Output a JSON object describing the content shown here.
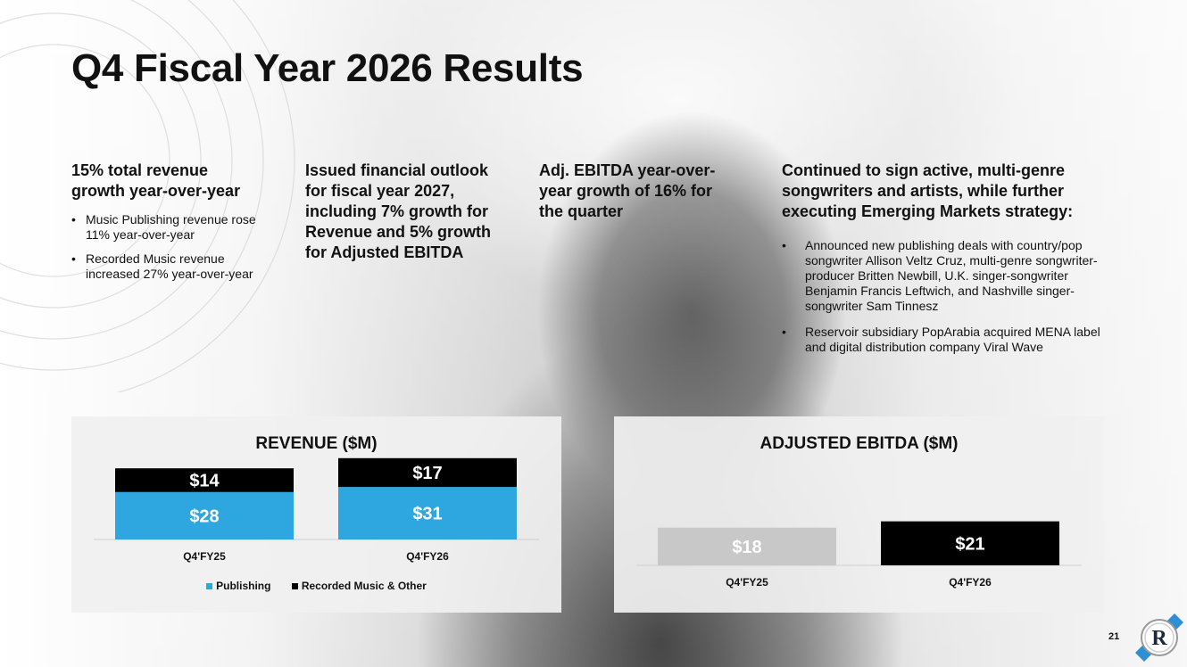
{
  "title": "Q4 Fiscal Year 2026 Results",
  "columns": [
    {
      "heading": "15% total revenue growth year-over-year",
      "bullets": [
        "Music Publishing revenue rose 11% year-over-year",
        "Recorded Music revenue increased 27% year-over-year"
      ]
    },
    {
      "heading": "Issued financial outlook for fiscal year 2027, including 7% growth for Revenue and 5% growth for Adjusted EBITDA",
      "bullets": []
    },
    {
      "heading": "Adj. EBITDA year-over-year growth of 16% for the quarter",
      "bullets": []
    },
    {
      "heading": "Continued to sign active, multi-genre songwriters and artists, while further executing Emerging Markets strategy:",
      "bullets": [
        "Announced new publishing deals with country/pop songwriter Allison Veltz Cruz, multi-genre songwriter-producer Britten Newbill, U.K. singer-songwriter Benjamin Francis Leftwich, and Nashville singer-songwriter Sam Tinnesz",
        "Reservoir subsidiary PopArabia acquired MENA label and digital distribution company Viral Wave"
      ]
    }
  ],
  "colors": {
    "publishing": "#2ea6e0",
    "recorded": "#000000",
    "ebitda_fy25": "#c8c8c8",
    "ebitda_fy26": "#000000",
    "logo_accent": "#2e8fd6"
  },
  "chart_data": [
    {
      "type": "bar",
      "stacked": true,
      "title": "REVENUE ($M)",
      "categories": [
        "Q4'FY25",
        "Q4'FY26"
      ],
      "series": [
        {
          "name": "Publishing",
          "values": [
            28,
            31
          ],
          "labels": [
            "$28",
            "$31"
          ]
        },
        {
          "name": "Recorded Music & Other",
          "values": [
            14,
            17
          ],
          "labels": [
            "$14",
            "$17"
          ]
        }
      ],
      "legend": "bottom",
      "grid": false
    },
    {
      "type": "bar",
      "title": "ADJUSTED EBITDA ($M)",
      "categories": [
        "Q4'FY25",
        "Q4'FY26"
      ],
      "values": [
        18,
        21
      ],
      "labels": [
        "$18",
        "$21"
      ],
      "grid": false
    }
  ],
  "page_number": "21",
  "logo_icon": "reservoir-r-logo-icon"
}
